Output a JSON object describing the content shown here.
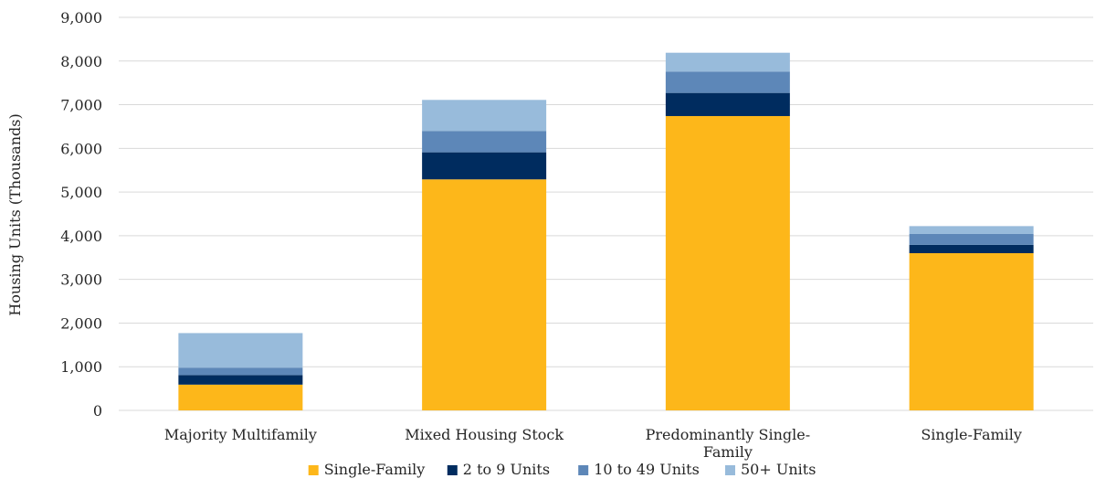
{
  "chart_data": {
    "type": "bar",
    "stacked": true,
    "ylabel": "Housing Units (Thousands)",
    "xlabel": "",
    "ylim": [
      0,
      9000
    ],
    "yticks": [
      "0",
      "1,000",
      "2,000",
      "3,000",
      "4,000",
      "5,000",
      "6,000",
      "7,000",
      "8,000",
      "9,000"
    ],
    "grid": true,
    "legend_position": "bottom",
    "categories": [
      [
        "Majority Multifamily"
      ],
      [
        "Mixed Housing Stock"
      ],
      [
        "Predominantly Single-",
        "Family"
      ],
      [
        "Single-Family"
      ]
    ],
    "series": [
      {
        "name": "Single-Family",
        "color": "#fdb71a",
        "values": [
          590,
          5290,
          6740,
          3600
        ]
      },
      {
        "name": "2 to 9 Units",
        "color": "#002c5f",
        "values": [
          220,
          620,
          530,
          190
        ]
      },
      {
        "name": "10 to 49 Units",
        "color": "#5d87b8",
        "values": [
          170,
          490,
          490,
          250
        ]
      },
      {
        "name": "50+ Units",
        "color": "#98bbdb",
        "values": [
          790,
          710,
          430,
          180
        ]
      }
    ]
  }
}
